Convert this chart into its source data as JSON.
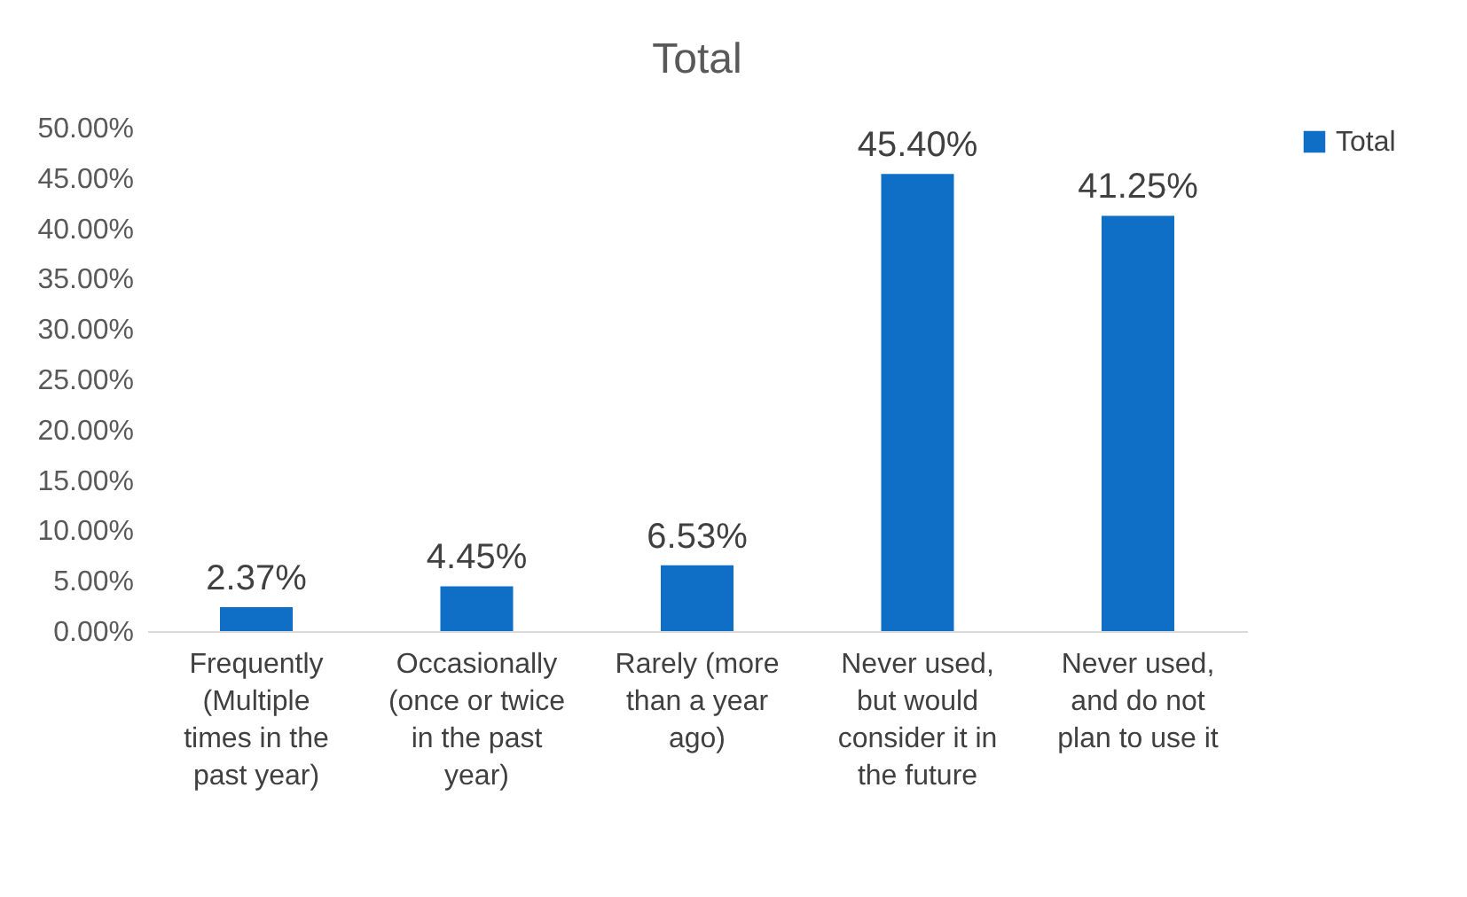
{
  "chart_data": {
    "type": "bar",
    "title": "Total",
    "categories": [
      "Frequently (Multiple times in the past year)",
      "Occasionally (once or twice in the past year)",
      "Rarely (more than a year ago)",
      "Never used, but would consider it in the future",
      "Never used, and do not plan to use it"
    ],
    "series": [
      {
        "name": "Total",
        "color": "#0f6fc6",
        "values": [
          2.37,
          4.45,
          6.53,
          45.4,
          41.25
        ],
        "value_labels": [
          "2.37%",
          "4.45%",
          "6.53%",
          "45.40%",
          "41.25%"
        ]
      }
    ],
    "ylim": [
      0,
      50
    ],
    "yticks": [
      {
        "value": 0,
        "label": "0.00%"
      },
      {
        "value": 5,
        "label": "5.00%"
      },
      {
        "value": 10,
        "label": "10.00%"
      },
      {
        "value": 15,
        "label": "15.00%"
      },
      {
        "value": 20,
        "label": "20.00%"
      },
      {
        "value": 25,
        "label": "25.00%"
      },
      {
        "value": 30,
        "label": "30.00%"
      },
      {
        "value": 35,
        "label": "35.00%"
      },
      {
        "value": 40,
        "label": "40.00%"
      },
      {
        "value": 45,
        "label": "45.00%"
      },
      {
        "value": 50,
        "label": "50.00%"
      }
    ],
    "grid": false,
    "legend": "right"
  }
}
